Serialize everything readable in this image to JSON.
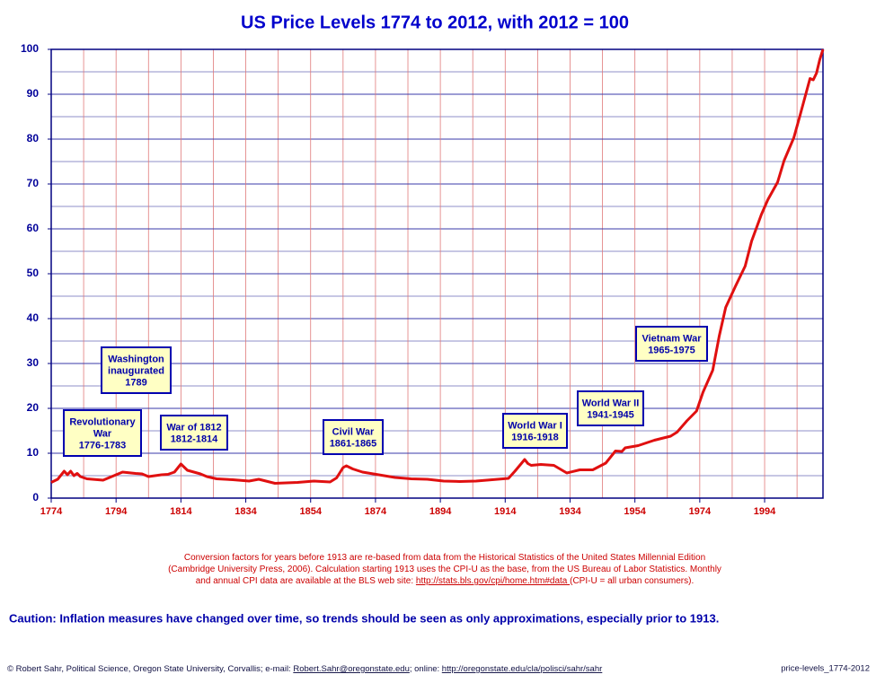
{
  "chart_data": {
    "type": "line",
    "title": "US Price Levels 1774 to 2012, with 2012 = 100",
    "color": "#e01010",
    "x": [
      1774,
      1776,
      1778,
      1779,
      1780,
      1781,
      1782,
      1783,
      1785,
      1790,
      1795,
      1796,
      1800,
      1802,
      1804,
      1808,
      1810,
      1812,
      1814,
      1816,
      1820,
      1822,
      1825,
      1830,
      1835,
      1838,
      1843,
      1850,
      1855,
      1860,
      1862,
      1864,
      1865,
      1867,
      1870,
      1875,
      1880,
      1885,
      1890,
      1895,
      1900,
      1905,
      1910,
      1915,
      1917,
      1920,
      1921,
      1922,
      1925,
      1929,
      1933,
      1937,
      1941,
      1945,
      1947,
      1948,
      1950,
      1951,
      1955,
      1960,
      1965,
      1967,
      1970,
      1973,
      1975,
      1978,
      1980,
      1982,
      1985,
      1988,
      1990,
      1993,
      1995,
      1998,
      2000,
      2003,
      2005,
      2008,
      2009,
      2010,
      2011,
      2012
    ],
    "values": [
      3.5,
      4.2,
      6,
      5.2,
      6,
      5,
      5.5,
      4.8,
      4.3,
      4,
      5.5,
      5.8,
      5.5,
      5.4,
      4.8,
      5.2,
      5.3,
      5.8,
      7.6,
      6.2,
      5.4,
      4.8,
      4.3,
      4.1,
      3.8,
      4.2,
      3.3,
      3.5,
      3.8,
      3.6,
      4.5,
      6.8,
      7.2,
      6.5,
      5.8,
      5.2,
      4.6,
      4.3,
      4.2,
      3.8,
      3.7,
      3.8,
      4.1,
      4.4,
      6,
      8.6,
      7.7,
      7.3,
      7.5,
      7.3,
      5.6,
      6.3,
      6.3,
      7.8,
      9.6,
      10.5,
      10.4,
      11.2,
      11.7,
      12.9,
      13.8,
      14.7,
      17.2,
      19.4,
      23.6,
      28.5,
      36.1,
      42.5,
      47.2,
      51.7,
      57.3,
      63.2,
      66.5,
      70.4,
      75.2,
      80.3,
      85.5,
      93.5,
      93.2,
      94.7,
      97.7,
      100
    ],
    "xlim": [
      1774,
      2012
    ],
    "xticks": [
      1774,
      1794,
      1814,
      1834,
      1854,
      1874,
      1894,
      1914,
      1934,
      1954,
      1974,
      1994
    ],
    "x_grid_minor": [
      1784,
      1804,
      1824,
      1844,
      1864,
      1884,
      1904,
      1924,
      1944,
      1964,
      1984,
      2004
    ],
    "ylim": [
      0,
      100
    ],
    "yticks": [
      0,
      10,
      20,
      30,
      40,
      50,
      60,
      70,
      80,
      90,
      100
    ],
    "y_grid_minor": [
      5,
      15,
      25,
      35,
      45,
      55,
      65,
      75,
      85,
      95
    ],
    "grid": true,
    "annotations": [
      {
        "lines": [
          "Revolutionary",
          "War",
          "1776-1783"
        ]
      },
      {
        "lines": [
          "Washington",
          "inaugurated",
          "1789"
        ]
      },
      {
        "lines": [
          "War of 1812",
          "1812-1814"
        ]
      },
      {
        "lines": [
          "Civil War",
          "1861-1865"
        ]
      },
      {
        "lines": [
          "World War I",
          "1916-1918"
        ]
      },
      {
        "lines": [
          "World War II",
          "1941-1945"
        ]
      },
      {
        "lines": [
          "Vietnam War",
          "1965-1975"
        ]
      }
    ],
    "notes": [
      [
        {
          "text": "Conversion factors for years before 1913 are re-based from data from the Historical Statistics of the United States Millennial Edition",
          "link": false
        }
      ],
      [
        {
          "text": "(Cambridge University Press, 2006).  Calculation starting 1913 uses the CPI-U as the base, from the US Bureau of Labor Statistics.  Monthly",
          "link": false
        }
      ],
      [
        {
          "text": "and annual CPI data are available at the BLS web site:  ",
          "link": false
        },
        {
          "text": "http://stats.bls.gov/cpi/home.htm#data ",
          "link": true
        },
        {
          "text": "(CPI-U = all urban consumers).",
          "link": false
        }
      ]
    ],
    "caution": "Caution:  Inflation measures have changed over time, so trends should be seen as only approximations, especially prior to 1913.",
    "credit": [
      {
        "text": "© Robert Sahr, Political Science, Oregon State University, Corvallis; e-mail:  ",
        "link": false
      },
      {
        "text": "Robert.Sahr@oregonstate.edu",
        "link": true
      },
      {
        "text": "; online:  ",
        "link": false
      },
      {
        "text": "http://oregonstate.edu/cla/polisci/sahr/sahr",
        "link": true
      }
    ],
    "file_name": "price-levels_1774-2012"
  }
}
